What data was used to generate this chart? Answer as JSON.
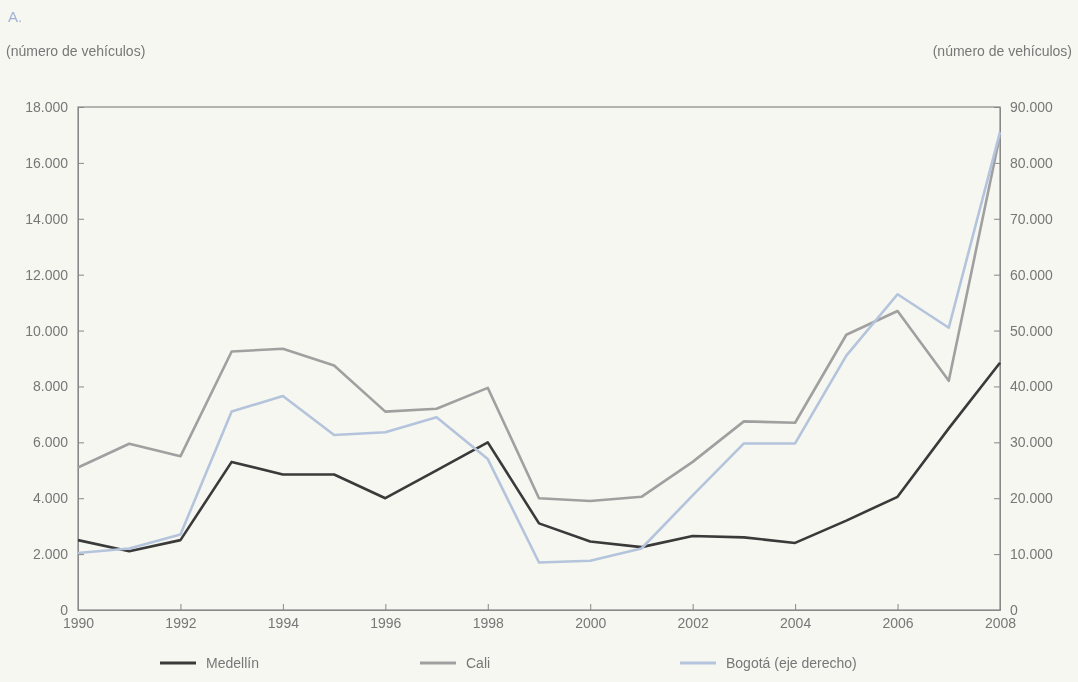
{
  "chart_data": {
    "type": "line",
    "title": "A.",
    "ylabel": "(número de vehículos)",
    "y2label": "(número de vehículos)",
    "x": [
      1990,
      1991,
      1992,
      1993,
      1994,
      1995,
      1996,
      1997,
      1998,
      1999,
      2000,
      2001,
      2002,
      2003,
      2004,
      2005,
      2006,
      2007,
      2008
    ],
    "xlim": [
      1990,
      2008
    ],
    "xticks": [
      1990,
      1992,
      1994,
      1996,
      1998,
      2000,
      2002,
      2004,
      2006,
      2008
    ],
    "ylim": [
      0,
      18000
    ],
    "yticks": [
      {
        "value": 0,
        "label": "0"
      },
      {
        "value": 2000,
        "label": "2.000"
      },
      {
        "value": 4000,
        "label": "4.000"
      },
      {
        "value": 6000,
        "label": "6.000"
      },
      {
        "value": 8000,
        "label": "8.000"
      },
      {
        "value": 10000,
        "label": "10.000"
      },
      {
        "value": 12000,
        "label": "12.000"
      },
      {
        "value": 14000,
        "label": "14.000"
      },
      {
        "value": 16000,
        "label": "16.000"
      },
      {
        "value": 18000,
        "label": "18.000"
      }
    ],
    "y2lim": [
      0,
      90000
    ],
    "y2ticks": [
      {
        "value": 0,
        "label": "0"
      },
      {
        "value": 10000,
        "label": "10.000"
      },
      {
        "value": 20000,
        "label": "20.000"
      },
      {
        "value": 30000,
        "label": "30.000"
      },
      {
        "value": 40000,
        "label": "40.000"
      },
      {
        "value": 50000,
        "label": "50.000"
      },
      {
        "value": 60000,
        "label": "60.000"
      },
      {
        "value": 70000,
        "label": "70.000"
      },
      {
        "value": 80000,
        "label": "80.000"
      },
      {
        "value": 90000,
        "label": "90.000"
      }
    ],
    "series": [
      {
        "name": "Medellín",
        "color": "#3a3a3a",
        "values": [
          2500,
          2100,
          2500,
          5300,
          4850,
          4850,
          4000,
          5000,
          6000,
          3100,
          2450,
          2250,
          2650,
          2600,
          2400,
          3200,
          4050,
          6500,
          8850
        ]
      },
      {
        "name": "Cali",
        "color": "#a0a0a0",
        "values": [
          5100,
          5950,
          5500,
          9250,
          9350,
          8750,
          7100,
          7200,
          7950,
          4000,
          3900,
          4050,
          5300,
          6750,
          6700,
          9850,
          10700,
          8200,
          17000
        ]
      },
      {
        "name": "Bogotá (eje derecho)",
        "color": "#b4c4dc",
        "axis": "y2",
        "values": [
          10200,
          11000,
          13500,
          35500,
          38300,
          31300,
          31800,
          34500,
          27000,
          8500,
          8800,
          11000,
          20500,
          29800,
          29800,
          45500,
          56500,
          50500,
          85500
        ]
      }
    ],
    "legend": "bottom",
    "grid": false,
    "marker": "none",
    "line_style": "solid"
  }
}
